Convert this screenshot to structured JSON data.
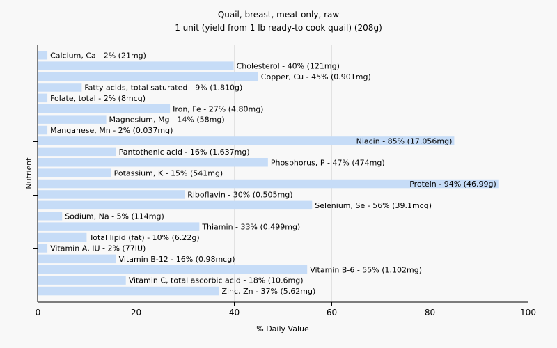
{
  "chart_data": {
    "type": "bar",
    "orientation": "horizontal",
    "title": "Quail, breast, meat only, raw",
    "subtitle": "1 unit (yield from 1 lb ready-to cook quail) (208g)",
    "xlabel": "% Daily Value",
    "ylabel": "Nutrient",
    "xlim": [
      0,
      100
    ],
    "xticks": [
      0,
      20,
      40,
      60,
      80,
      100
    ],
    "grid": true,
    "bar_color": "#c6dcf7",
    "categories": [
      "Calcium, Ca",
      "Cholesterol",
      "Copper, Cu",
      "Fatty acids, total saturated",
      "Folate, total",
      "Iron, Fe",
      "Magnesium, Mg",
      "Manganese, Mn",
      "Niacin",
      "Pantothenic acid",
      "Phosphorus, P",
      "Potassium, K",
      "Protein",
      "Riboflavin",
      "Selenium, Se",
      "Sodium, Na",
      "Thiamin",
      "Total lipid (fat)",
      "Vitamin A, IU",
      "Vitamin B-12",
      "Vitamin B-6",
      "Vitamin C, total ascorbic acid",
      "Zinc, Zn"
    ],
    "values": [
      2,
      40,
      45,
      9,
      2,
      27,
      14,
      2,
      85,
      16,
      47,
      15,
      94,
      30,
      56,
      5,
      33,
      10,
      2,
      16,
      55,
      18,
      37
    ],
    "labels": [
      "Calcium, Ca - 2% (21mg)",
      "Cholesterol - 40% (121mg)",
      "Copper, Cu - 45% (0.901mg)",
      "Fatty acids, total saturated - 9% (1.810g)",
      "Folate, total - 2% (8mcg)",
      "Iron, Fe - 27% (4.80mg)",
      "Magnesium, Mg - 14% (58mg)",
      "Manganese, Mn - 2% (0.037mg)",
      "Niacin - 85% (17.056mg)",
      "Pantothenic acid - 16% (1.637mg)",
      "Phosphorus, P - 47% (474mg)",
      "Potassium, K - 15% (541mg)",
      "Protein - 94% (46.99g)",
      "Riboflavin - 30% (0.505mg)",
      "Selenium, Se - 56% (39.1mcg)",
      "Sodium, Na - 5% (114mg)",
      "Thiamin - 33% (0.499mg)",
      "Total lipid (fat) - 10% (6.22g)",
      "Vitamin A, IU - 2% (77IU)",
      "Vitamin B-12 - 16% (0.98mcg)",
      "Vitamin B-6 - 55% (1.102mg)",
      "Vitamin C, total ascorbic acid - 18% (10.6mg)",
      "Zinc, Zn - 37% (5.62mg)"
    ]
  }
}
